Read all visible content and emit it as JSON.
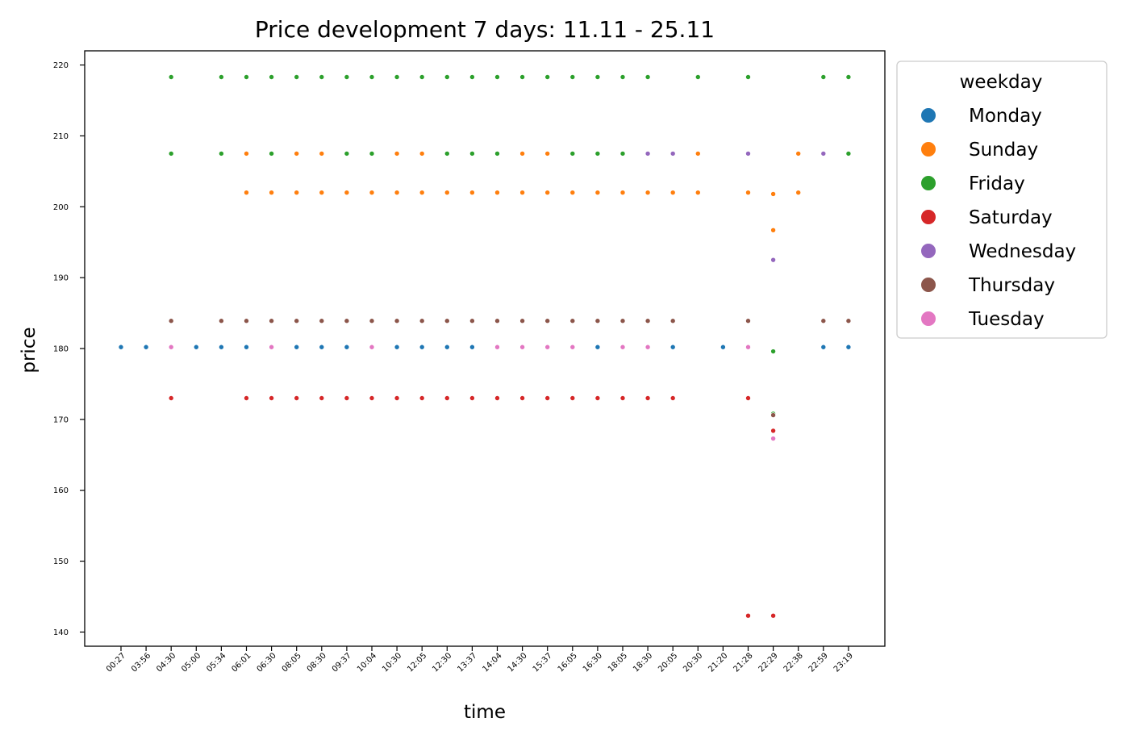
{
  "chart_data": {
    "type": "scatter",
    "title": "Price development 7 days: 11.11 - 25.11",
    "xlabel": "time",
    "ylabel": "price",
    "ylim": [
      138,
      222
    ],
    "yticks": [
      140,
      150,
      160,
      170,
      180,
      190,
      200,
      210,
      220
    ],
    "categories": [
      "00:27",
      "03:56",
      "04:30",
      "05:00",
      "05:34",
      "06:01",
      "06:30",
      "08:05",
      "08:30",
      "09:37",
      "10:04",
      "10:30",
      "12:05",
      "12:30",
      "13:37",
      "14:04",
      "14:30",
      "15:37",
      "16:05",
      "16:30",
      "18:05",
      "18:30",
      "20:05",
      "20:30",
      "21:20",
      "21:28",
      "22:29",
      "22:38",
      "22:59",
      "23:19"
    ],
    "legend": {
      "title": "weekday",
      "placement": "outside-right-top"
    },
    "grid": false,
    "series": [
      {
        "name": "Monday",
        "color": "#1f77b4",
        "points": [
          [
            "00:27",
            180.2
          ],
          [
            "03:56",
            180.2
          ],
          [
            "05:00",
            180.2
          ],
          [
            "05:34",
            180.2
          ],
          [
            "06:01",
            180.2
          ],
          [
            "08:05",
            180.2
          ],
          [
            "08:30",
            180.2
          ],
          [
            "09:37",
            180.2
          ],
          [
            "10:30",
            180.2
          ],
          [
            "12:05",
            180.2
          ],
          [
            "12:30",
            180.2
          ],
          [
            "13:37",
            180.2
          ],
          [
            "16:30",
            180.2
          ],
          [
            "20:05",
            180.2
          ],
          [
            "21:20",
            180.2
          ],
          [
            "22:59",
            180.2
          ],
          [
            "23:19",
            180.2
          ]
        ]
      },
      {
        "name": "Sunday",
        "color": "#ff7f0e",
        "points": [
          [
            "06:01",
            207.5
          ],
          [
            "08:05",
            207.5
          ],
          [
            "08:30",
            207.5
          ],
          [
            "10:30",
            207.5
          ],
          [
            "12:05",
            207.5
          ],
          [
            "14:30",
            207.5
          ],
          [
            "15:37",
            207.5
          ],
          [
            "20:30",
            207.5
          ],
          [
            "22:38",
            207.5
          ],
          [
            "06:01",
            202.0
          ],
          [
            "06:30",
            202.0
          ],
          [
            "08:05",
            202.0
          ],
          [
            "08:30",
            202.0
          ],
          [
            "09:37",
            202.0
          ],
          [
            "10:04",
            202.0
          ],
          [
            "10:30",
            202.0
          ],
          [
            "12:05",
            202.0
          ],
          [
            "12:30",
            202.0
          ],
          [
            "13:37",
            202.0
          ],
          [
            "14:04",
            202.0
          ],
          [
            "14:30",
            202.0
          ],
          [
            "15:37",
            202.0
          ],
          [
            "16:05",
            202.0
          ],
          [
            "16:30",
            202.0
          ],
          [
            "18:05",
            202.0
          ],
          [
            "18:30",
            202.0
          ],
          [
            "20:05",
            202.0
          ],
          [
            "20:30",
            202.0
          ],
          [
            "21:28",
            202.0
          ],
          [
            "22:29",
            201.8
          ],
          [
            "22:38",
            202.0
          ],
          [
            "22:29",
            196.7
          ]
        ]
      },
      {
        "name": "Friday",
        "color": "#2ca02c",
        "points": [
          [
            "04:30",
            218.3
          ],
          [
            "05:34",
            218.3
          ],
          [
            "06:01",
            218.3
          ],
          [
            "06:30",
            218.3
          ],
          [
            "08:05",
            218.3
          ],
          [
            "08:30",
            218.3
          ],
          [
            "09:37",
            218.3
          ],
          [
            "10:04",
            218.3
          ],
          [
            "10:30",
            218.3
          ],
          [
            "12:05",
            218.3
          ],
          [
            "12:30",
            218.3
          ],
          [
            "13:37",
            218.3
          ],
          [
            "14:04",
            218.3
          ],
          [
            "14:30",
            218.3
          ],
          [
            "15:37",
            218.3
          ],
          [
            "16:05",
            218.3
          ],
          [
            "16:30",
            218.3
          ],
          [
            "18:05",
            218.3
          ],
          [
            "18:30",
            218.3
          ],
          [
            "20:30",
            218.3
          ],
          [
            "21:28",
            218.3
          ],
          [
            "22:59",
            218.3
          ],
          [
            "23:19",
            218.3
          ],
          [
            "04:30",
            207.5
          ],
          [
            "05:34",
            207.5
          ],
          [
            "06:30",
            207.5
          ],
          [
            "09:37",
            207.5
          ],
          [
            "10:04",
            207.5
          ],
          [
            "12:30",
            207.5
          ],
          [
            "13:37",
            207.5
          ],
          [
            "14:04",
            207.5
          ],
          [
            "16:05",
            207.5
          ],
          [
            "16:30",
            207.5
          ],
          [
            "18:05",
            207.5
          ],
          [
            "23:19",
            207.5
          ],
          [
            "22:29",
            179.6
          ],
          [
            "22:29",
            170.8
          ]
        ]
      },
      {
        "name": "Saturday",
        "color": "#d62728",
        "points": [
          [
            "04:30",
            173.0
          ],
          [
            "06:01",
            173.0
          ],
          [
            "06:30",
            173.0
          ],
          [
            "08:05",
            173.0
          ],
          [
            "08:30",
            173.0
          ],
          [
            "09:37",
            173.0
          ],
          [
            "10:04",
            173.0
          ],
          [
            "10:30",
            173.0
          ],
          [
            "12:05",
            173.0
          ],
          [
            "12:30",
            173.0
          ],
          [
            "13:37",
            173.0
          ],
          [
            "14:04",
            173.0
          ],
          [
            "14:30",
            173.0
          ],
          [
            "15:37",
            173.0
          ],
          [
            "16:05",
            173.0
          ],
          [
            "16:30",
            173.0
          ],
          [
            "18:05",
            173.0
          ],
          [
            "18:30",
            173.0
          ],
          [
            "20:05",
            173.0
          ],
          [
            "21:28",
            173.0
          ],
          [
            "22:29",
            168.4
          ],
          [
            "21:28",
            142.3
          ],
          [
            "22:29",
            142.3
          ]
        ]
      },
      {
        "name": "Wednesday",
        "color": "#9467bd",
        "points": [
          [
            "18:30",
            207.5
          ],
          [
            "20:05",
            207.5
          ],
          [
            "21:28",
            207.5
          ],
          [
            "22:59",
            207.5
          ],
          [
            "22:29",
            192.5
          ]
        ]
      },
      {
        "name": "Thursday",
        "color": "#8c564b",
        "points": [
          [
            "04:30",
            183.9
          ],
          [
            "05:34",
            183.9
          ],
          [
            "06:01",
            183.9
          ],
          [
            "06:30",
            183.9
          ],
          [
            "08:05",
            183.9
          ],
          [
            "08:30",
            183.9
          ],
          [
            "09:37",
            183.9
          ],
          [
            "10:04",
            183.9
          ],
          [
            "10:30",
            183.9
          ],
          [
            "12:05",
            183.9
          ],
          [
            "12:30",
            183.9
          ],
          [
            "13:37",
            183.9
          ],
          [
            "14:04",
            183.9
          ],
          [
            "14:30",
            183.9
          ],
          [
            "15:37",
            183.9
          ],
          [
            "16:05",
            183.9
          ],
          [
            "16:30",
            183.9
          ],
          [
            "18:05",
            183.9
          ],
          [
            "18:30",
            183.9
          ],
          [
            "20:05",
            183.9
          ],
          [
            "21:28",
            183.9
          ],
          [
            "22:59",
            183.9
          ],
          [
            "23:19",
            183.9
          ],
          [
            "22:29",
            170.6
          ]
        ]
      },
      {
        "name": "Tuesday",
        "color": "#e377c2",
        "points": [
          [
            "04:30",
            180.2
          ],
          [
            "06:30",
            180.2
          ],
          [
            "10:04",
            180.2
          ],
          [
            "14:04",
            180.2
          ],
          [
            "14:30",
            180.2
          ],
          [
            "15:37",
            180.2
          ],
          [
            "16:05",
            180.2
          ],
          [
            "18:05",
            180.2
          ],
          [
            "18:30",
            180.2
          ],
          [
            "21:28",
            180.2
          ],
          [
            "22:29",
            167.3
          ]
        ]
      }
    ]
  }
}
